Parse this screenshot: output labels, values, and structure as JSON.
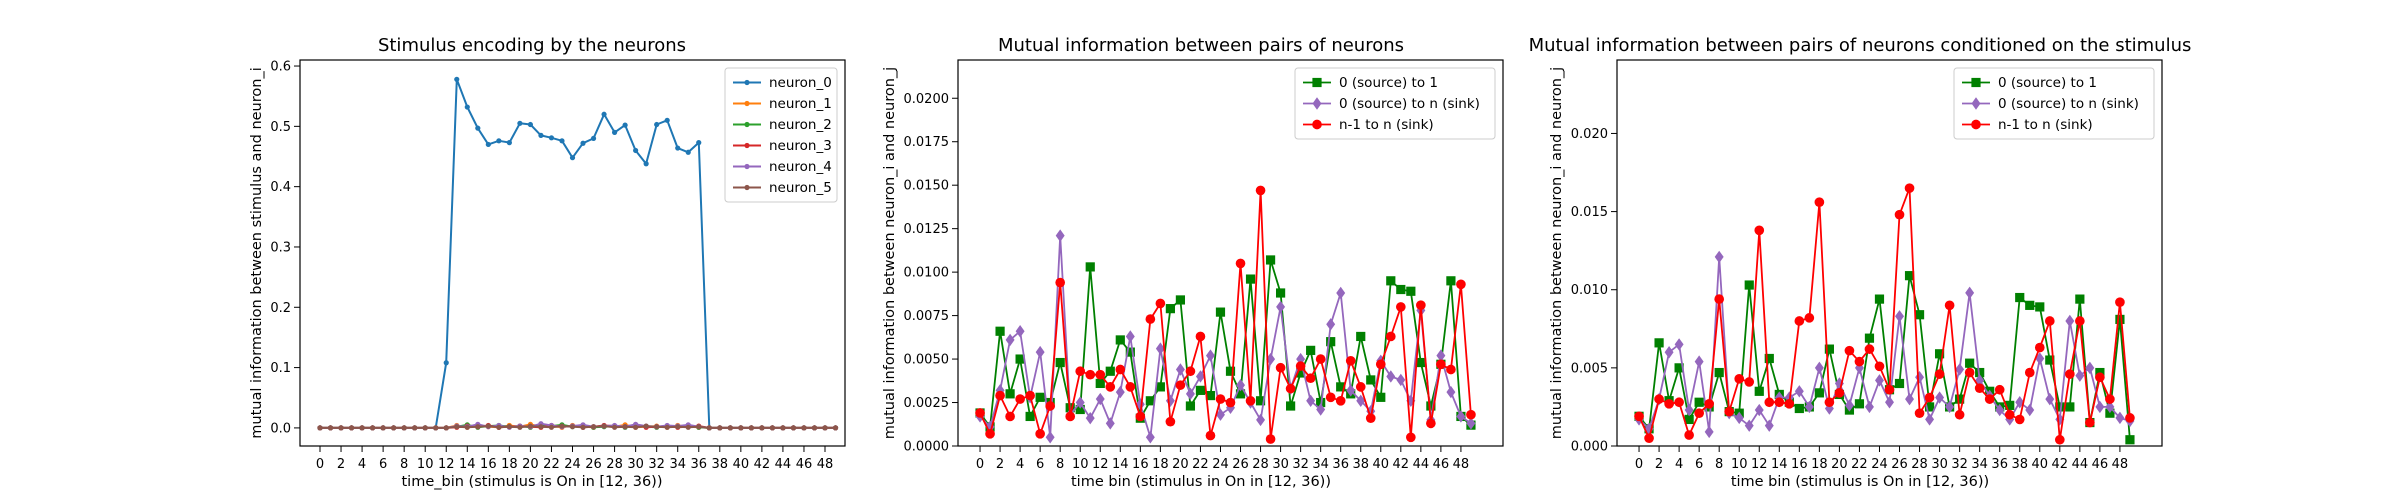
{
  "chart_data": [
    {
      "type": "line",
      "title": "Stimulus encoding by the neurons",
      "xlabel": "time_bin (stimulus is On in [12, 36))",
      "ylabel": "mutual information between stimulus and neuron_i",
      "xlim": [
        -1.9,
        49.9
      ],
      "ylim": [
        -0.03,
        0.61
      ],
      "xticks": [
        0,
        2,
        4,
        6,
        8,
        10,
        12,
        14,
        16,
        18,
        20,
        22,
        24,
        26,
        28,
        30,
        32,
        34,
        36,
        38,
        40,
        42,
        44,
        46,
        48
      ],
      "yticks": [
        0.0,
        0.1,
        0.2,
        0.3,
        0.4,
        0.5,
        0.6
      ],
      "ytick_decimals": 1,
      "legend": "top-right",
      "grid": false,
      "x": [
        0,
        1,
        2,
        3,
        4,
        5,
        6,
        7,
        8,
        9,
        10,
        11,
        12,
        13,
        14,
        15,
        16,
        17,
        18,
        19,
        20,
        21,
        22,
        23,
        24,
        25,
        26,
        27,
        28,
        29,
        30,
        31,
        32,
        33,
        34,
        35,
        36,
        37,
        38,
        39,
        40,
        41,
        42,
        43,
        44,
        45,
        46,
        47,
        48,
        49
      ],
      "series": [
        {
          "name": "neuron_0",
          "color": "#1f77b4",
          "marker": "point",
          "values": [
            0,
            0,
            0,
            0,
            0,
            0,
            0,
            0,
            0,
            0,
            0,
            0,
            0.108,
            0.578,
            0.532,
            0.497,
            0.47,
            0.476,
            0.473,
            0.505,
            0.503,
            0.485,
            0.481,
            0.476,
            0.448,
            0.472,
            0.48,
            0.52,
            0.49,
            0.502,
            0.46,
            0.438,
            0.503,
            0.51,
            0.464,
            0.457,
            0.473,
            0,
            0,
            0,
            0,
            0,
            0,
            0,
            0,
            0,
            0,
            0,
            0,
            0
          ]
        },
        {
          "name": "neuron_1",
          "color": "#ff7f0e",
          "marker": "point",
          "values": [
            0,
            0,
            0,
            0,
            0,
            0,
            0,
            0,
            0,
            0,
            0,
            0,
            0,
            0.004,
            0.001,
            0.003,
            0.002,
            0.001,
            0.004,
            0.002,
            0.006,
            0.002,
            0.003,
            0.001,
            0.004,
            0.002,
            0.001,
            0.003,
            0.002,
            0.005,
            0.001,
            0.002,
            0.003,
            0.001,
            0.004,
            0.002,
            0.001,
            0,
            0,
            0,
            0,
            0,
            0,
            0,
            0,
            0,
            0,
            0,
            0,
            0
          ]
        },
        {
          "name": "neuron_2",
          "color": "#2ca02c",
          "marker": "point",
          "values": [
            0,
            0,
            0,
            0,
            0,
            0,
            0,
            0,
            0,
            0,
            0,
            0,
            0,
            0.002,
            0.005,
            0.001,
            0.003,
            0.004,
            0.002,
            0.003,
            0.001,
            0.004,
            0.003,
            0.005,
            0.002,
            0.004,
            0.001,
            0.002,
            0.003,
            0.001,
            0.004,
            0.002,
            0.001,
            0.003,
            0.002,
            0.004,
            0.001,
            0,
            0,
            0,
            0,
            0,
            0,
            0,
            0,
            0,
            0,
            0,
            0,
            0
          ]
        },
        {
          "name": "neuron_3",
          "color": "#d62728",
          "marker": "point",
          "values": [
            0,
            0,
            0,
            0,
            0,
            0,
            0,
            0,
            0,
            0,
            0,
            0,
            0,
            0.001,
            0.003,
            0.002,
            0.004,
            0.001,
            0.002,
            0.003,
            0.002,
            0.001,
            0.004,
            0.002,
            0.003,
            0.001,
            0.002,
            0.004,
            0.003,
            0.002,
            0.005,
            0.001,
            0.002,
            0.003,
            0.001,
            0.002,
            0.003,
            0,
            0,
            0,
            0,
            0,
            0,
            0,
            0,
            0,
            0,
            0,
            0,
            0
          ]
        },
        {
          "name": "neuron_4",
          "color": "#9467bd",
          "marker": "point",
          "values": [
            0,
            0,
            0,
            0,
            0,
            0,
            0,
            0,
            0,
            0,
            0,
            0,
            0,
            0.003,
            0.002,
            0.006,
            0.002,
            0.004,
            0.001,
            0.003,
            0.002,
            0.007,
            0.004,
            0.002,
            0.003,
            0.005,
            0.002,
            0.003,
            0.004,
            0.002,
            0.006,
            0.003,
            0.002,
            0.004,
            0.003,
            0.005,
            0.002,
            0,
            0,
            0,
            0,
            0,
            0,
            0,
            0,
            0,
            0,
            0,
            0,
            0
          ]
        },
        {
          "name": "neuron_5",
          "color": "#8c564b",
          "marker": "point",
          "values": [
            0,
            0,
            0,
            0,
            0,
            0,
            0,
            0,
            0,
            0,
            0,
            0,
            0,
            0.002,
            0.001,
            0.002,
            0.003,
            0.001,
            0.002,
            0.001,
            0.003,
            0.002,
            0.001,
            0.003,
            0.002,
            0.001,
            0.002,
            0.003,
            0.001,
            0.002,
            0.001,
            0.003,
            0.002,
            0.001,
            0.002,
            0.001,
            0.002,
            0,
            0,
            0,
            0,
            0,
            0,
            0,
            0,
            0,
            0,
            0,
            0,
            0
          ]
        }
      ]
    },
    {
      "type": "line",
      "title": "Mutual information between pairs of neurons",
      "xlabel": "time bin (stimulus in On in [12, 36))",
      "ylabel": "mutual information between neuron_i and neuron_j",
      "xlim": [
        -2.2,
        52.2
      ],
      "ylim": [
        0.0,
        0.0222
      ],
      "xticks": [
        0,
        2,
        4,
        6,
        8,
        10,
        12,
        14,
        16,
        18,
        20,
        22,
        24,
        26,
        28,
        30,
        32,
        34,
        36,
        38,
        40,
        42,
        44,
        46,
        48
      ],
      "yticks": [
        0.0,
        0.0025,
        0.005,
        0.0075,
        0.01,
        0.0125,
        0.015,
        0.0175,
        0.02
      ],
      "ytick_decimals": 4,
      "legend": "top-right",
      "grid": false,
      "x": [
        0,
        1,
        2,
        3,
        4,
        5,
        6,
        7,
        8,
        9,
        10,
        11,
        12,
        13,
        14,
        15,
        16,
        17,
        18,
        19,
        20,
        21,
        22,
        23,
        24,
        25,
        26,
        27,
        28,
        29,
        30,
        31,
        32,
        33,
        34,
        35,
        36,
        37,
        38,
        39,
        40,
        41,
        42,
        43,
        44,
        45,
        46,
        47,
        48,
        49
      ],
      "series": [
        {
          "name": "0 (source) to 1",
          "color": "#008000",
          "marker": "square",
          "values": [
            0.0019,
            0.0011,
            0.0066,
            0.003,
            0.005,
            0.0017,
            0.0028,
            0.0025,
            0.0048,
            0.0022,
            0.0021,
            0.0103,
            0.0036,
            0.0043,
            0.0061,
            0.0054,
            0.0016,
            0.0026,
            0.0034,
            0.0079,
            0.0084,
            0.0023,
            0.0032,
            0.0029,
            0.0077,
            0.0043,
            0.003,
            0.0096,
            0.0026,
            0.0107,
            0.0088,
            0.0023,
            0.0042,
            0.0055,
            0.0025,
            0.006,
            0.0034,
            0.003,
            0.0063,
            0.0038,
            0.0028,
            0.0095,
            0.009,
            0.0089,
            0.0048,
            0.0023,
            0.0047,
            0.0095,
            0.0017,
            0.0012
          ]
        },
        {
          "name": "0 (source) to n (sink)",
          "color": "#9467bd",
          "marker": "diamond",
          "values": [
            0.0017,
            0.0011,
            0.0032,
            0.0061,
            0.0066,
            0.0028,
            0.0054,
            0.0005,
            0.0121,
            0.0018,
            0.0025,
            0.0016,
            0.0027,
            0.0013,
            0.0031,
            0.0063,
            0.0024,
            0.0005,
            0.0056,
            0.0026,
            0.0044,
            0.003,
            0.004,
            0.0052,
            0.0018,
            0.0022,
            0.0035,
            0.0025,
            0.0015,
            0.005,
            0.008,
            0.0033,
            0.005,
            0.0026,
            0.0021,
            0.007,
            0.0088,
            0.0032,
            0.0026,
            0.002,
            0.0049,
            0.004,
            0.0038,
            0.0026,
            0.0078,
            0.0015,
            0.0052,
            0.0031,
            0.0017,
            0.0013
          ]
        },
        {
          "name": "n-1 to n (sink)",
          "color": "#ff0000",
          "marker": "circle",
          "values": [
            0.0019,
            0.0007,
            0.0029,
            0.0017,
            0.0027,
            0.0029,
            0.0007,
            0.0023,
            0.0094,
            0.0017,
            0.0043,
            0.0041,
            0.0041,
            0.0034,
            0.0044,
            0.0034,
            0.0017,
            0.0073,
            0.0082,
            0.0014,
            0.0035,
            0.0043,
            0.0063,
            0.0006,
            0.0027,
            0.0025,
            0.0105,
            0.0026,
            0.0147,
            0.0004,
            0.0045,
            0.0033,
            0.0046,
            0.0039,
            0.005,
            0.0028,
            0.0026,
            0.0049,
            0.0034,
            0.0016,
            0.0047,
            0.0063,
            0.008,
            0.0005,
            0.0081,
            0.0013,
            0.0047,
            0.0044,
            0.0093,
            0.0018
          ]
        }
      ]
    },
    {
      "type": "line",
      "title": "Mutual information between pairs of neurons conditioned on the stimulus",
      "xlabel": "time bin (stimulus is On in [12, 36))",
      "ylabel": "mutual information between neuron_i and neuron_j",
      "xlim": [
        -2.2,
        52.2
      ],
      "ylim": [
        0.0,
        0.0247
      ],
      "xticks": [
        0,
        2,
        4,
        6,
        8,
        10,
        12,
        14,
        16,
        18,
        20,
        22,
        24,
        26,
        28,
        30,
        32,
        34,
        36,
        38,
        40,
        42,
        44,
        46,
        48
      ],
      "yticks": [
        0.0,
        0.005,
        0.01,
        0.015,
        0.02
      ],
      "ytick_decimals": 3,
      "legend": "top-right",
      "grid": false,
      "x": [
        0,
        1,
        2,
        3,
        4,
        5,
        6,
        7,
        8,
        9,
        10,
        11,
        12,
        13,
        14,
        15,
        16,
        17,
        18,
        19,
        20,
        21,
        22,
        23,
        24,
        25,
        26,
        27,
        28,
        29,
        30,
        31,
        32,
        33,
        34,
        35,
        36,
        37,
        38,
        39,
        40,
        41,
        42,
        43,
        44,
        45,
        46,
        47,
        48,
        49
      ],
      "series": [
        {
          "name": "0 (source) to 1",
          "color": "#008000",
          "marker": "square",
          "values": [
            0.0019,
            0.0011,
            0.0066,
            0.0029,
            0.005,
            0.0017,
            0.0028,
            0.0025,
            0.0047,
            0.0022,
            0.0021,
            0.0103,
            0.0035,
            0.0056,
            0.0033,
            0.0028,
            0.0024,
            0.0025,
            0.0034,
            0.0062,
            0.0033,
            0.0023,
            0.0027,
            0.0069,
            0.0094,
            0.0036,
            0.004,
            0.0109,
            0.0084,
            0.0025,
            0.0059,
            0.0025,
            0.003,
            0.0053,
            0.0047,
            0.0035,
            0.0025,
            0.0026,
            0.0095,
            0.009,
            0.0089,
            0.0055,
            0.0025,
            0.0025,
            0.0094,
            0.0015,
            0.0047,
            0.0021,
            0.0081,
            0.0004
          ]
        },
        {
          "name": "0 (source) to n (sink)",
          "color": "#9467bd",
          "marker": "diamond",
          "values": [
            0.0017,
            0.0011,
            0.003,
            0.006,
            0.0065,
            0.0023,
            0.0054,
            0.0009,
            0.0121,
            0.0021,
            0.0018,
            0.0013,
            0.0023,
            0.0013,
            0.0031,
            0.0031,
            0.0035,
            0.0025,
            0.005,
            0.0024,
            0.004,
            0.0026,
            0.005,
            0.0025,
            0.0042,
            0.0028,
            0.0083,
            0.003,
            0.0044,
            0.0017,
            0.0031,
            0.0025,
            0.0049,
            0.0098,
            0.0042,
            0.0032,
            0.0023,
            0.0017,
            0.0028,
            0.0023,
            0.0056,
            0.003,
            0.0017,
            0.008,
            0.0045,
            0.005,
            0.0025,
            0.0025,
            0.0018,
            0.0016
          ]
        },
        {
          "name": "n-1 to n (sink)",
          "color": "#ff0000",
          "marker": "circle",
          "values": [
            0.0019,
            0.0005,
            0.003,
            0.0027,
            0.0028,
            0.0007,
            0.0021,
            0.0027,
            0.0094,
            0.0022,
            0.0043,
            0.0041,
            0.0138,
            0.0028,
            0.0028,
            0.0027,
            0.008,
            0.0082,
            0.0156,
            0.0028,
            0.0034,
            0.0061,
            0.0054,
            0.0062,
            0.0051,
            0.0036,
            0.0148,
            0.0165,
            0.0021,
            0.0031,
            0.0046,
            0.009,
            0.002,
            0.0047,
            0.0037,
            0.003,
            0.0036,
            0.002,
            0.0017,
            0.0047,
            0.0063,
            0.008,
            0.0004,
            0.0046,
            0.008,
            0.0015,
            0.0044,
            0.003,
            0.0092,
            0.0018
          ]
        }
      ]
    }
  ]
}
